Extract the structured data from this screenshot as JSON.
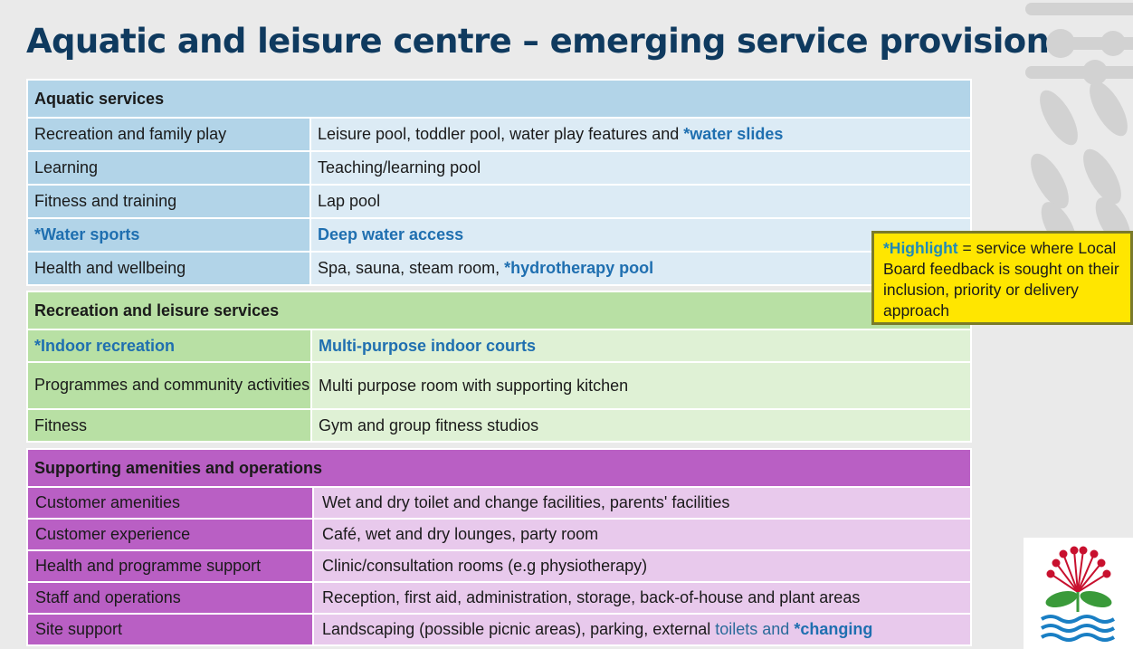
{
  "title": "Aquatic and leisure centre – emerging service provision",
  "sections": {
    "aquatic": {
      "heading": "Aquatic services",
      "rows": [
        {
          "label": "Recreation and family play",
          "value_plain": "Leisure pool, toddler pool, water play features and ",
          "value_highlight": "*water slides"
        },
        {
          "label": "Learning",
          "value_plain": "Teaching/learning pool"
        },
        {
          "label": "Fitness and training",
          "value_plain": "Lap pool"
        },
        {
          "label": "*Water sports",
          "value_highlight": "Deep water access"
        },
        {
          "label": "Health and wellbeing",
          "value_plain": "Spa, sauna, steam room, ",
          "value_highlight": "*hydrotherapy pool"
        }
      ]
    },
    "recreation": {
      "heading": "Recreation and leisure services",
      "rows": [
        {
          "label": "*Indoor recreation",
          "value_highlight": "Multi-purpose indoor courts"
        },
        {
          "label": "Programmes and community activities",
          "value_plain": "Multi purpose room with supporting kitchen"
        },
        {
          "label": "Fitness",
          "value_plain": "Gym and group fitness studios"
        }
      ]
    },
    "support": {
      "heading": "Supporting amenities and operations",
      "rows": [
        {
          "label": "Customer amenities",
          "value_plain": "Wet and dry toilet and change facilities, parents' facilities"
        },
        {
          "label": "Customer experience",
          "value_plain": "Café, wet and dry lounges, party room"
        },
        {
          "label": "Health and programme support",
          "value_plain": "Clinic/consultation rooms (e.g physiotherapy)"
        },
        {
          "label": "Staff and operations",
          "value_plain": "Reception, first aid, administration, storage, back-of-house and plant areas"
        },
        {
          "label": "Site support",
          "value_plain": "Landscaping (possible picnic areas), parking, external ",
          "value_soft": "toilets and ",
          "value_highlight": "*changing"
        }
      ]
    }
  },
  "callout": {
    "key": "*Highlight",
    "text": " = service where Local Board feedback is sought on their inclusion, priority or delivery approach"
  },
  "colors": {
    "title": "#0f3a5f",
    "aquatic_dark": "#b2d4e8",
    "aquatic_light": "#dcebf5",
    "recreation_dark": "#b8e0a4",
    "recreation_light": "#dff1d5",
    "support_dark": "#b95fc4",
    "support_light": "#e8c9ec",
    "highlight_text": "#1f6fb0",
    "callout_bg": "#ffe600"
  },
  "icons": {
    "decoration": "leaf-pattern-icon",
    "logo": "auckland-council-pohutukawa-logo"
  }
}
